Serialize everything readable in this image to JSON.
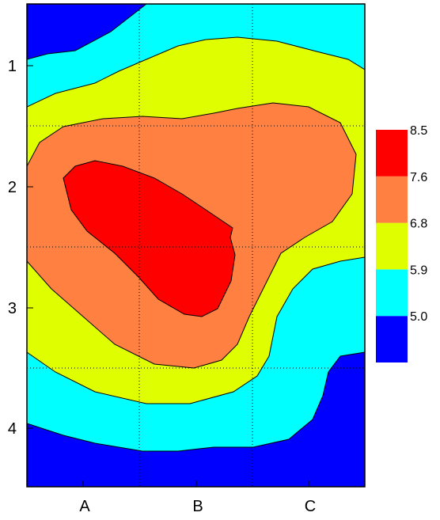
{
  "chart_data": {
    "type": "contour",
    "title": "",
    "xlabel": "",
    "ylabel": "",
    "x_ticks": [
      "A",
      "B",
      "C"
    ],
    "y_ticks": [
      "1",
      "2",
      "3",
      "4"
    ],
    "y_reversed": true,
    "grid": true,
    "grid_style": "dotted",
    "legend_placement": "right",
    "levels": [
      {
        "label": "",
        "color": "#0000ff"
      },
      {
        "label": "5.0",
        "color": "#00ffff"
      },
      {
        "label": "5.9",
        "color": "#dfff00"
      },
      {
        "label": "6.8",
        "color": "#ff8040"
      },
      {
        "label": "7.6",
        "color": "#ff0000"
      },
      {
        "label": "8.5",
        "color": ""
      }
    ]
  }
}
